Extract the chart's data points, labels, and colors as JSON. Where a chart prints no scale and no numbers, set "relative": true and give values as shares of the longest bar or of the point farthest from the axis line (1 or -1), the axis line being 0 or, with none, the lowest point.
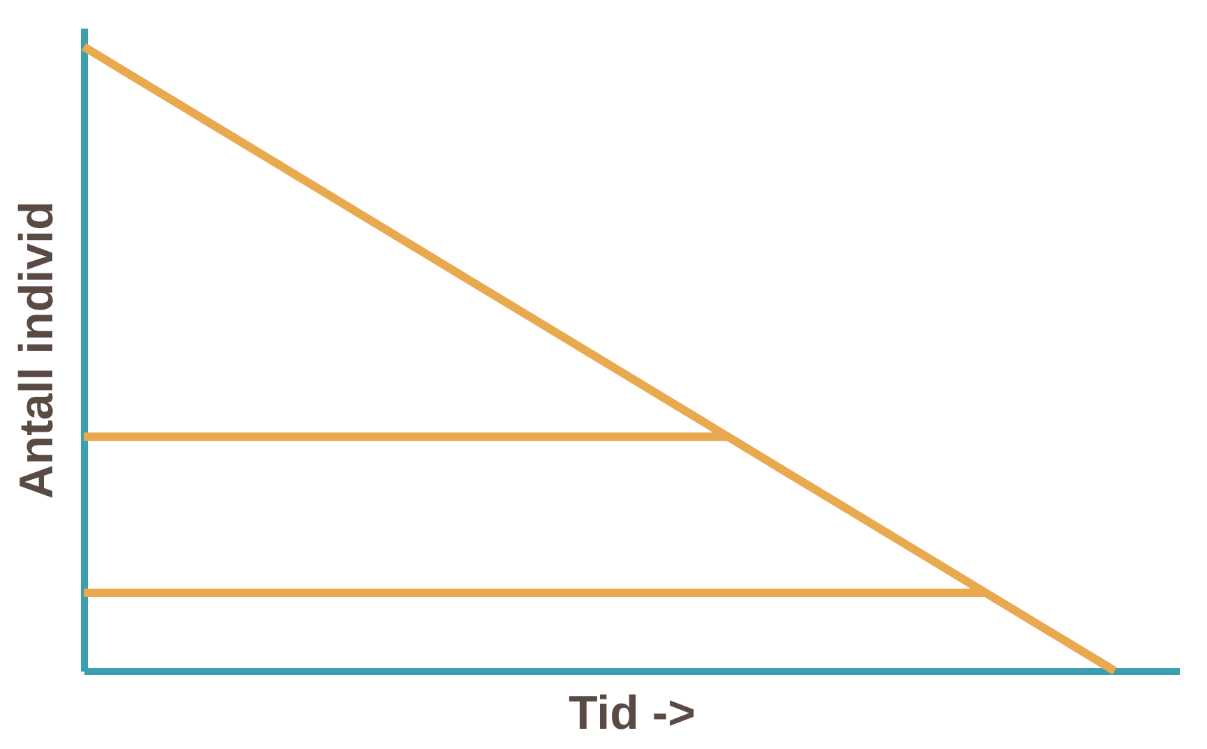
{
  "chart_data": {
    "type": "line",
    "relative": true,
    "xlabel": "Tid ->",
    "ylabel": "Antall individ",
    "grid": false,
    "legend": false,
    "marker": "none",
    "line_style": "solid",
    "tick_labels": false,
    "categories": [
      null,
      null,
      null,
      null,
      null,
      null,
      null,
      null,
      null,
      null,
      null,
      null,
      null,
      null,
      null,
      null,
      null
    ],
    "series": [
      {
        "color": "#e8a94f",
        "values": [
          1,
          0.9375,
          0.875,
          0.8125,
          0.75,
          0.6875,
          0.625,
          0.5625,
          0.5,
          0.4375,
          0.375,
          0.3125,
          0.25,
          0.1875,
          0.125,
          0.0625,
          0
        ]
      },
      {
        "color": "#e8a94f",
        "values": [
          0.375,
          0.375,
          0.375,
          0.375,
          0.375,
          0.375,
          0.375,
          0.375,
          0.375,
          0.375,
          0.375,
          null,
          null,
          null,
          null,
          null,
          null
        ]
      },
      {
        "color": "#e8a94f",
        "values": [
          0.125,
          0.125,
          0.125,
          0.125,
          0.125,
          0.125,
          0.125,
          0.125,
          0.125,
          0.125,
          0.125,
          0.125,
          0.125,
          0.125,
          0.125,
          null,
          null
        ]
      }
    ]
  }
}
